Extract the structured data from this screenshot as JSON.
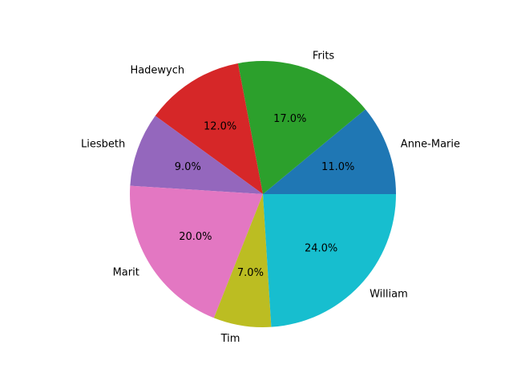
{
  "chart_data": {
    "type": "pie",
    "start_angle_deg": 0,
    "direction": "counterclockwise",
    "slices": [
      {
        "label": "Anne-Marie",
        "value": 11.0,
        "pct_label": "11.0%",
        "color": "#1f77b4"
      },
      {
        "label": "Frits",
        "value": 17.0,
        "pct_label": "17.0%",
        "color": "#2ca02c"
      },
      {
        "label": "Hadewych",
        "value": 12.0,
        "pct_label": "12.0%",
        "color": "#d62728"
      },
      {
        "label": "Liesbeth",
        "value": 9.0,
        "pct_label": "9.0%",
        "color": "#9467bd"
      },
      {
        "label": "Marit",
        "value": 20.0,
        "pct_label": "20.0%",
        "color": "#e377c2"
      },
      {
        "label": "Tim",
        "value": 7.0,
        "pct_label": "7.0%",
        "color": "#bcbd22"
      },
      {
        "label": "William",
        "value": 24.0,
        "pct_label": "24.0%",
        "color": "#17becf"
      }
    ]
  }
}
